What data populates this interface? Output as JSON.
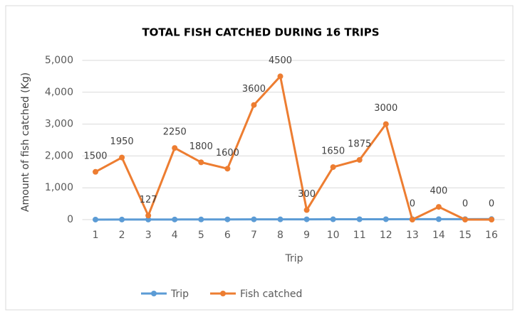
{
  "chart_data": {
    "type": "line",
    "title": "TOTAL FISH CATCHED DURING 16 TRIPS",
    "x_label": "Trip",
    "y_label": "Amount of fish catched (Kg)",
    "categories": [
      "1",
      "2",
      "3",
      "4",
      "5",
      "6",
      "7",
      "8",
      "9",
      "10",
      "11",
      "12",
      "13",
      "14",
      "15",
      "16"
    ],
    "series": [
      {
        "name": "Trip",
        "color": "#5b9bd5",
        "values": [
          1,
          2,
          3,
          4,
          5,
          6,
          7,
          8,
          9,
          10,
          11,
          12,
          13,
          14,
          15,
          16
        ]
      },
      {
        "name": "Fish catched",
        "color": "#ed7d31",
        "values": [
          1500,
          1950,
          127,
          2250,
          1800,
          1600,
          3600,
          4500,
          300,
          1650,
          1875,
          3000,
          0,
          400,
          0,
          0
        ]
      }
    ],
    "ylim": [
      0,
      5000
    ],
    "yticks": [
      0,
      {
        "value": 1000,
        "label": "1,000"
      },
      {
        "value": 2000,
        "label": "2,000"
      },
      {
        "value": 3000,
        "label": "3,000"
      },
      {
        "value": 4000,
        "label": "4,000"
      },
      {
        "value": 5000,
        "label": "5,000"
      }
    ],
    "grid": true,
    "legend": "bottom"
  }
}
